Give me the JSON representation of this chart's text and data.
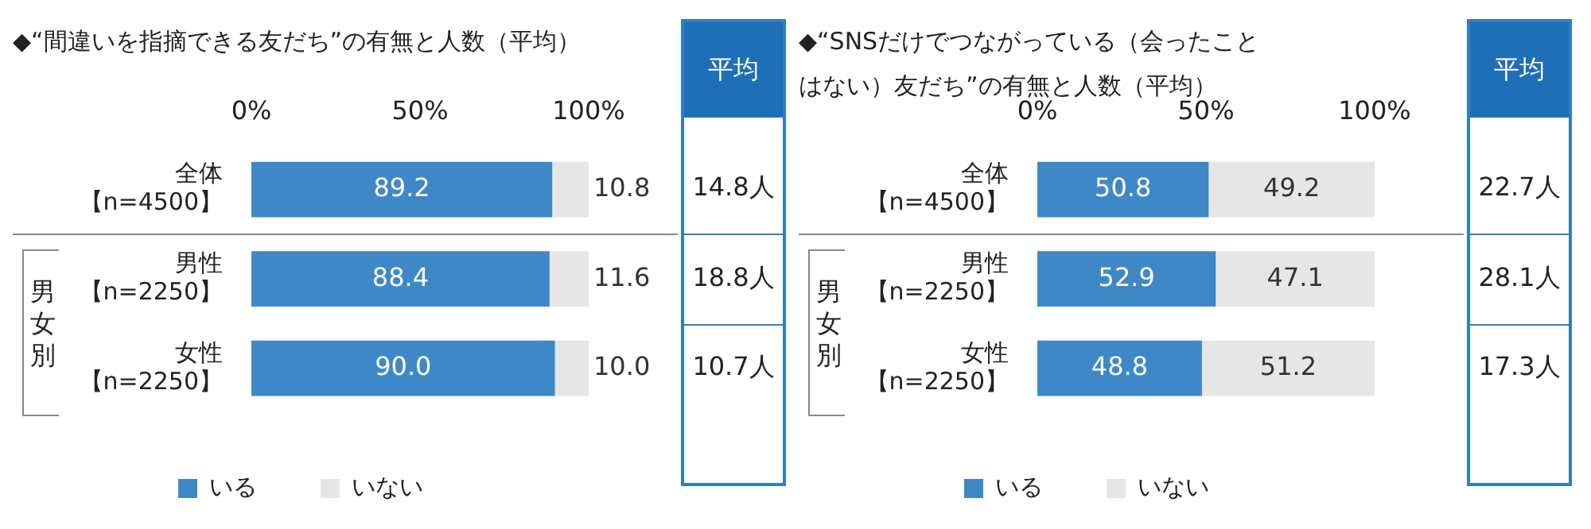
{
  "chart_data": [
    {
      "type": "bar",
      "orientation": "horizontal",
      "stacked": true,
      "title": "◆“間違いを指摘できる友だち”の有無と人数（平均）",
      "categories": [
        "全体【n=4500】",
        "男性【n=2250】",
        "女性【n=2250】"
      ],
      "series": [
        {
          "name": "いる",
          "color": "#3f88c8",
          "values": [
            89.2,
            88.4,
            90.0
          ],
          "value_labels": [
            "89.2",
            "88.4",
            "90.0"
          ]
        },
        {
          "name": "いない",
          "color": "#e6e6e6",
          "values": [
            10.8,
            11.6,
            10.0
          ],
          "value_labels": [
            "10.8",
            "11.6",
            "10.0"
          ]
        }
      ],
      "xlim": [
        0,
        100
      ],
      "xticks": [
        {
          "value": 0,
          "label": "0%"
        },
        {
          "value": 50,
          "label": "50%"
        },
        {
          "value": 100,
          "label": "100%"
        }
      ],
      "legend": "bottom",
      "annotations": [
        "平均",
        "14.8人",
        "18.8人",
        "10.7人",
        "男女別"
      ]
    },
    {
      "type": "bar",
      "orientation": "horizontal",
      "stacked": true,
      "title": "◆“SNSだけでつながっている（会ったことはない）友だち”の有無と人数（平均）",
      "categories": [
        "全体【n=4500】",
        "男性【n=2250】",
        "女性【n=2250】"
      ],
      "series": [
        {
          "name": "いる",
          "color": "#3f88c8",
          "values": [
            50.8,
            52.9,
            48.8
          ],
          "value_labels": [
            "50.8",
            "52.9",
            "48.8"
          ]
        },
        {
          "name": "いない",
          "color": "#e6e6e6",
          "values": [
            49.2,
            47.1,
            51.2
          ],
          "value_labels": [
            "49.2",
            "47.1",
            "51.2"
          ]
        }
      ],
      "xlim": [
        0,
        100
      ],
      "xticks": [
        {
          "value": 0,
          "label": "0%"
        },
        {
          "value": 50,
          "label": "50%"
        },
        {
          "value": 100,
          "label": "100%"
        }
      ],
      "legend": "bottom",
      "annotations": [
        "平均",
        "22.7人",
        "28.1人",
        "17.3人",
        "男女別"
      ]
    }
  ]
}
